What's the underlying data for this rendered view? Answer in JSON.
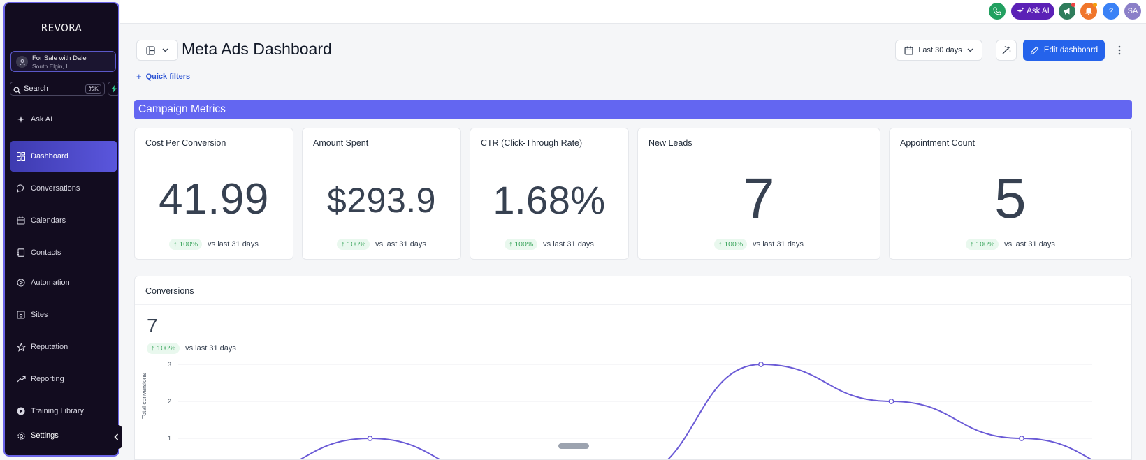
{
  "app": {
    "logo": "REVORA"
  },
  "account": {
    "name": "For Sale with Dale",
    "location": "South Elgin, IL"
  },
  "search": {
    "label": "Search",
    "shortcut": "⌘K"
  },
  "sidebar": {
    "items": [
      {
        "label": "Ask AI",
        "icon": "sparkles-icon"
      },
      {
        "label": "Dashboard",
        "icon": "dashboard-icon",
        "active": true
      },
      {
        "label": "Conversations",
        "icon": "chat-icon"
      },
      {
        "label": "Calendars",
        "icon": "calendar-icon"
      },
      {
        "label": "Contacts",
        "icon": "contacts-icon"
      },
      {
        "label": "Automation",
        "icon": "automation-icon"
      },
      {
        "label": "Sites",
        "icon": "sites-icon"
      },
      {
        "label": "Reputation",
        "icon": "star-icon"
      },
      {
        "label": "Reporting",
        "icon": "trend-icon"
      },
      {
        "label": "Training Library",
        "icon": "play-icon"
      },
      {
        "label": "Settings",
        "icon": "gear-icon"
      }
    ]
  },
  "topbar": {
    "ask_ai_label": "Ask AI",
    "avatar_initials": "SA",
    "help_label": "?"
  },
  "header": {
    "title": "Meta Ads Dashboard",
    "quick_filters_label": "Quick filters",
    "date_range_label": "Last 30 days",
    "edit_label": "Edit dashboard"
  },
  "section": {
    "title": "Campaign Metrics"
  },
  "metrics": [
    {
      "title": "Cost Per Conversion",
      "value": "41.99",
      "change": "100%",
      "compare": "vs last 31 days"
    },
    {
      "title": "Amount Spent",
      "value": "$293.9",
      "change": "100%",
      "compare": "vs last 31 days"
    },
    {
      "title": "CTR (Click-Through Rate)",
      "value": "1.68%",
      "change": "100%",
      "compare": "vs last 31 days"
    },
    {
      "title": "New Leads",
      "value": "7",
      "change": "100%",
      "compare": "vs last 31 days"
    },
    {
      "title": "Appointment Count",
      "value": "5",
      "change": "100%",
      "compare": "vs last 31 days"
    }
  ],
  "conversions": {
    "title": "Conversions",
    "value": "7",
    "change": "100%",
    "compare": "vs last 31 days"
  },
  "chart_data": {
    "type": "line",
    "title": "Conversions",
    "ylabel": "Total conversions",
    "ylim": [
      0,
      3
    ],
    "yticks": [
      "3",
      "2",
      "1"
    ],
    "grid": true,
    "series": [
      {
        "values": [
          0,
          1,
          0,
          0,
          3,
          2,
          1,
          0
        ],
        "color": "#6a5ad6"
      }
    ],
    "marker_indices": [
      1,
      4,
      5,
      6
    ]
  }
}
